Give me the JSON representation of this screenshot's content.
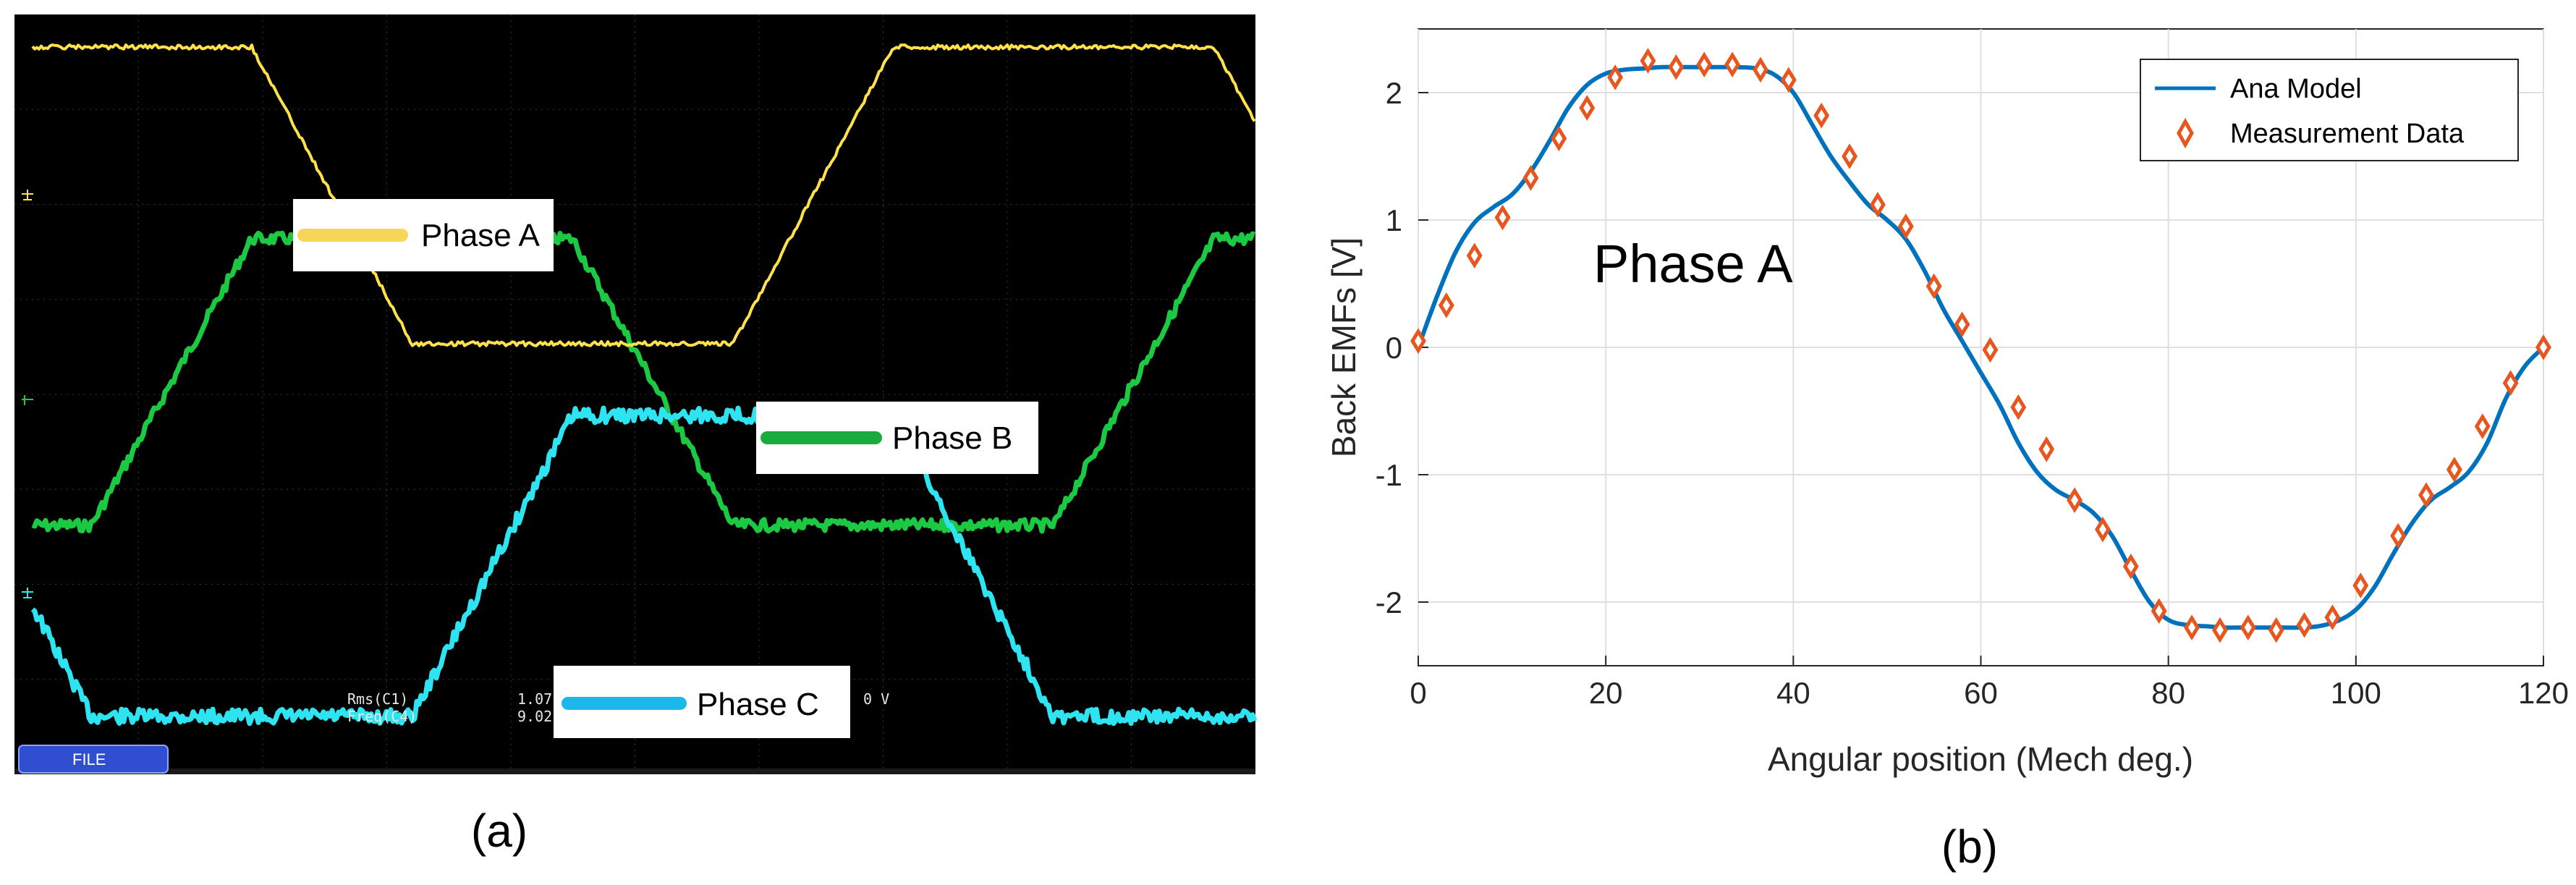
{
  "figure_labels": {
    "a": "(a)",
    "b": "(b)"
  },
  "colors": {
    "phase_a": "#ffe14a",
    "phase_b": "#1cc943",
    "phase_c": "#2ee4f0",
    "model_line": "#0072bd",
    "measure_marker": "#e8561f",
    "scope_bg": "#000000",
    "scope_grid": "#2e3b2e"
  },
  "oscilloscope": {
    "legend": [
      {
        "label": "Phase A",
        "color": "#f7d558"
      },
      {
        "label": "Phase B",
        "color": "#1aab3e"
      },
      {
        "label": "Phase C",
        "color": "#1cb8ec"
      }
    ],
    "readouts": [
      {
        "name": "Rms(C1)",
        "value": "1.07"
      },
      {
        "name": "Freq(C4)",
        "value": "9.02"
      }
    ],
    "readout_suffix": "0 V",
    "file_button": "FILE"
  },
  "chart_data": {
    "type": "line",
    "title": "",
    "annotation": "Phase A",
    "xlabel": "Angular position (Mech deg.)",
    "ylabel": "Back EMFs [V]",
    "xlim": [
      0,
      120
    ],
    "ylim": [
      -2.5,
      2.5
    ],
    "xticks": [
      0,
      20,
      40,
      60,
      80,
      100,
      120
    ],
    "yticks": [
      -2,
      -1,
      0,
      1,
      2
    ],
    "grid": true,
    "legend_position": "top-right",
    "series": [
      {
        "name": "Ana Model",
        "style": "line",
        "x": [
          0,
          2,
          4,
          6,
          8,
          10,
          12,
          14,
          16,
          18,
          20,
          22,
          24,
          26,
          28,
          30,
          32,
          34,
          36,
          38,
          40,
          42,
          44,
          46,
          48,
          50,
          52,
          54,
          56,
          58,
          60,
          62,
          64,
          66,
          68,
          70,
          72,
          74,
          76,
          78,
          80,
          82,
          84,
          86,
          88,
          90,
          92,
          94,
          96,
          98,
          100,
          102,
          104,
          106,
          108,
          110,
          112,
          114,
          116,
          118,
          120
        ],
        "values": [
          0.0,
          0.4,
          0.75,
          0.98,
          1.1,
          1.2,
          1.38,
          1.62,
          1.88,
          2.06,
          2.15,
          2.18,
          2.19,
          2.2,
          2.2,
          2.2,
          2.2,
          2.2,
          2.19,
          2.14,
          2.0,
          1.75,
          1.5,
          1.3,
          1.12,
          1.0,
          0.85,
          0.6,
          0.3,
          0.05,
          -0.2,
          -0.45,
          -0.75,
          -0.98,
          -1.12,
          -1.2,
          -1.3,
          -1.48,
          -1.75,
          -2.0,
          -2.14,
          -2.18,
          -2.19,
          -2.2,
          -2.2,
          -2.2,
          -2.2,
          -2.2,
          -2.19,
          -2.15,
          -2.06,
          -1.88,
          -1.62,
          -1.38,
          -1.2,
          -1.1,
          -0.98,
          -0.75,
          -0.4,
          -0.15,
          0.0
        ]
      },
      {
        "name": "Measurement Data",
        "style": "markers",
        "x": [
          0,
          3,
          6,
          9,
          12,
          15,
          18,
          21,
          24.5,
          27.5,
          30.5,
          33.5,
          36.5,
          39.5,
          43,
          46,
          49,
          52,
          55,
          58,
          61,
          64,
          67,
          70,
          73,
          76,
          79,
          82.5,
          85.5,
          88.5,
          91.5,
          94.5,
          97.5,
          100.5,
          104.5,
          107.5,
          110.5,
          113.5,
          116.5,
          120
        ],
        "values": [
          0.05,
          0.33,
          0.72,
          1.02,
          1.33,
          1.64,
          1.88,
          2.12,
          2.25,
          2.2,
          2.22,
          2.22,
          2.18,
          2.1,
          1.82,
          1.5,
          1.12,
          0.95,
          0.48,
          0.18,
          -0.02,
          -0.47,
          -0.8,
          -1.2,
          -1.43,
          -1.72,
          -2.07,
          -2.2,
          -2.22,
          -2.2,
          -2.22,
          -2.18,
          -2.12,
          -1.87,
          -1.48,
          -1.16,
          -0.96,
          -0.62,
          -0.28,
          0.0
        ]
      }
    ]
  }
}
